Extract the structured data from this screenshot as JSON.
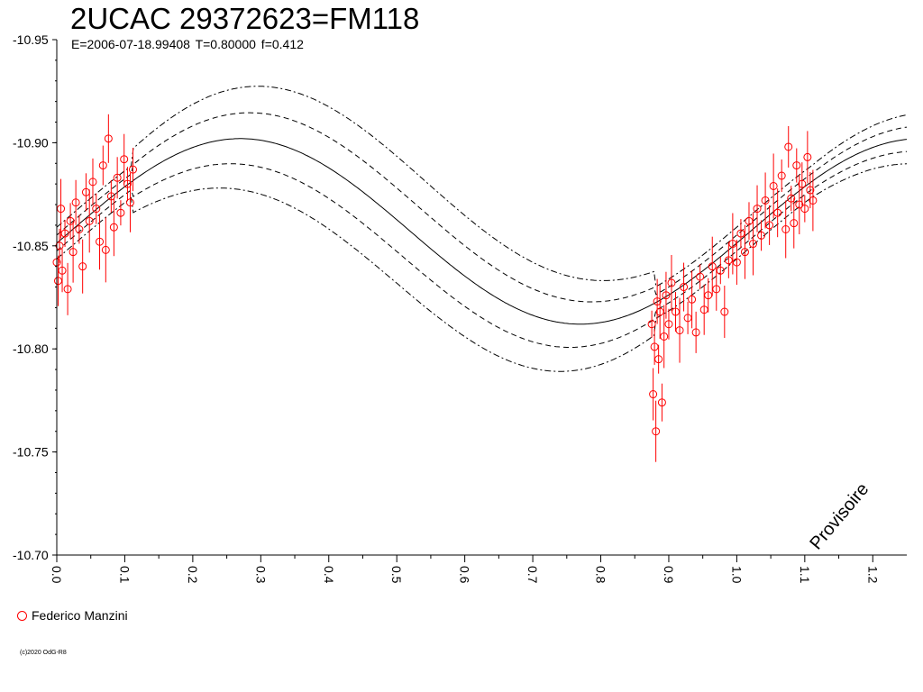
{
  "header": {
    "title": "2UCAC 29372623=FM118",
    "subtitle": "E=2006-07-18.99408    T=0.80000    f=0.412"
  },
  "legend": {
    "observer": "Federico Manzini",
    "marker_color": "#ff0000"
  },
  "footer": {
    "copyright": "(c)2020 OdG-R8"
  },
  "watermark": {
    "text": "Provisoire"
  },
  "chart_data": {
    "type": "scatter",
    "title": "2UCAC 29372623=FM118",
    "xlabel": "",
    "ylabel": "",
    "xlim": [
      0.0,
      1.25
    ],
    "ylim": [
      -10.7,
      -10.95
    ],
    "y_inverted": true,
    "grid": false,
    "x_tick_labels": [
      "0.0",
      "0.1",
      "0.2",
      "0.3",
      "0.4",
      "0.5",
      "0.6",
      "0.7",
      "0.8",
      "0.9",
      "1.0",
      "1.1",
      "1.2"
    ],
    "y_tick_labels": [
      "-10.95",
      "-10.90",
      "-10.85",
      "-10.80",
      "-10.75",
      "-10.70"
    ],
    "colors": {
      "observations": "#ff0000",
      "model": "#000000"
    },
    "model": {
      "mean": -10.857,
      "amplitude": 0.045,
      "phase_of_max": 0.27,
      "envelope_offsets": [
        -0.014,
        -0.007,
        0,
        0.007,
        0.014
      ],
      "envelope_styles": [
        "dashdot",
        "dashed",
        "solid",
        "dashed",
        "dashdot"
      ]
    },
    "series": [
      {
        "name": "Federico Manzini",
        "marker": "open-circle",
        "points": [
          [
            0.0,
            -10.842
          ],
          [
            0.002,
            -10.833
          ],
          [
            0.004,
            -10.85
          ],
          [
            0.006,
            -10.868
          ],
          [
            0.008,
            -10.838
          ],
          [
            0.012,
            -10.856
          ],
          [
            0.016,
            -10.829
          ],
          [
            0.02,
            -10.862
          ],
          [
            0.024,
            -10.847
          ],
          [
            0.028,
            -10.871
          ],
          [
            0.033,
            -10.858
          ],
          [
            0.038,
            -10.84
          ],
          [
            0.043,
            -10.876
          ],
          [
            0.048,
            -10.862
          ],
          [
            0.053,
            -10.881
          ],
          [
            0.058,
            -10.868
          ],
          [
            0.063,
            -10.852
          ],
          [
            0.068,
            -10.889
          ],
          [
            0.072,
            -10.848
          ],
          [
            0.076,
            -10.902
          ],
          [
            0.08,
            -10.874
          ],
          [
            0.084,
            -10.859
          ],
          [
            0.089,
            -10.883
          ],
          [
            0.094,
            -10.866
          ],
          [
            0.099,
            -10.892
          ],
          [
            0.104,
            -10.88
          ],
          [
            0.108,
            -10.871
          ],
          [
            0.112,
            -10.887
          ],
          [
            0.875,
            -10.812
          ],
          [
            0.877,
            -10.778
          ],
          [
            0.879,
            -10.801
          ],
          [
            0.881,
            -10.76
          ],
          [
            0.883,
            -10.823
          ],
          [
            0.885,
            -10.795
          ],
          [
            0.887,
            -10.818
          ],
          [
            0.89,
            -10.774
          ],
          [
            0.893,
            -10.806
          ],
          [
            0.896,
            -10.826
          ],
          [
            0.9,
            -10.812
          ],
          [
            0.904,
            -10.832
          ],
          [
            0.91,
            -10.818
          ],
          [
            0.916,
            -10.809
          ],
          [
            0.922,
            -10.83
          ],
          [
            0.928,
            -10.815
          ],
          [
            0.934,
            -10.824
          ],
          [
            0.94,
            -10.808
          ],
          [
            0.946,
            -10.835
          ],
          [
            0.952,
            -10.819
          ],
          [
            0.958,
            -10.826
          ],
          [
            0.964,
            -10.84
          ],
          [
            0.97,
            -10.829
          ],
          [
            0.976,
            -10.838
          ],
          [
            0.982,
            -10.818
          ],
          [
            0.988,
            -10.843
          ],
          [
            0.994,
            -10.851
          ],
          [
            1.0,
            -10.842
          ],
          [
            1.006,
            -10.856
          ],
          [
            1.012,
            -10.847
          ],
          [
            1.018,
            -10.862
          ],
          [
            1.024,
            -10.851
          ],
          [
            1.03,
            -10.868
          ],
          [
            1.036,
            -10.855
          ],
          [
            1.042,
            -10.872
          ],
          [
            1.048,
            -10.86
          ],
          [
            1.054,
            -10.879
          ],
          [
            1.06,
            -10.866
          ],
          [
            1.066,
            -10.884
          ],
          [
            1.072,
            -10.858
          ],
          [
            1.076,
            -10.898
          ],
          [
            1.08,
            -10.873
          ],
          [
            1.084,
            -10.861
          ],
          [
            1.088,
            -10.889
          ],
          [
            1.092,
            -10.87
          ],
          [
            1.096,
            -10.88
          ],
          [
            1.1,
            -10.868
          ],
          [
            1.104,
            -10.893
          ],
          [
            1.108,
            -10.877
          ],
          [
            1.112,
            -10.872
          ]
        ]
      }
    ]
  }
}
